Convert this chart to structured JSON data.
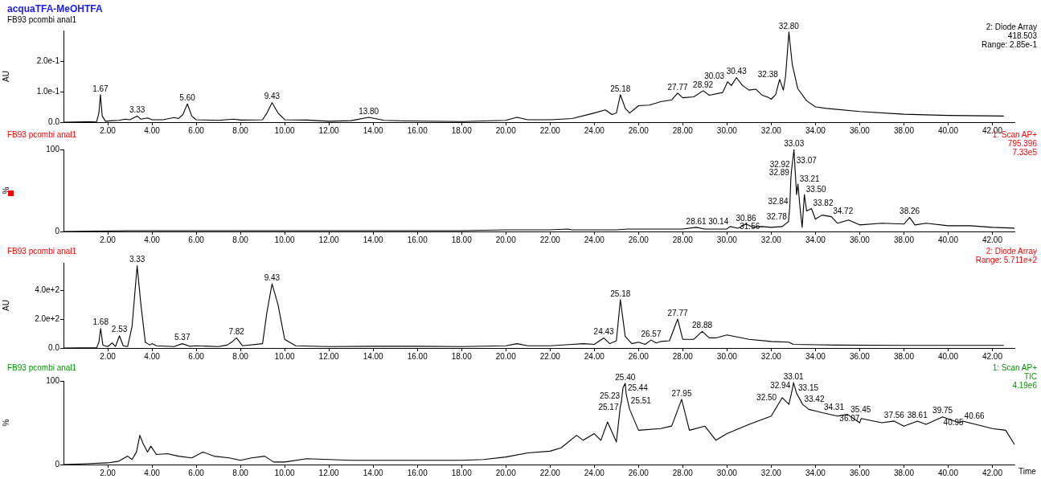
{
  "chart_data": [
    {
      "type": "line",
      "title": "acquaTFA-MeOHTFA",
      "subtitle": "FB93 pcombi anal1",
      "ylabel": "AU",
      "color": "#000000",
      "marker": "none",
      "grid": false,
      "legend": false,
      "x": [
        0,
        1.0,
        1.5,
        1.6,
        1.67,
        1.75,
        1.9,
        2.2,
        2.5,
        2.8,
        3.0,
        3.33,
        3.5,
        3.8,
        4.0,
        4.5,
        5.0,
        5.2,
        5.4,
        5.6,
        5.8,
        6.0,
        7.0,
        7.7,
        8.0,
        9.0,
        9.2,
        9.43,
        9.7,
        10.0,
        11.0,
        12.0,
        13.0,
        13.8,
        14.5,
        15.5,
        18.0,
        20.0,
        20.5,
        21.0,
        22.0,
        23.0,
        24.0,
        24.5,
        24.8,
        25.0,
        25.18,
        25.4,
        25.6,
        26.0,
        26.5,
        27.0,
        27.5,
        27.77,
        28.0,
        28.5,
        28.92,
        29.2,
        29.8,
        30.03,
        30.2,
        30.43,
        30.7,
        31.0,
        31.3,
        31.6,
        31.9,
        32.0,
        32.2,
        32.38,
        32.55,
        32.65,
        32.8,
        32.95,
        33.2,
        33.6,
        34.0,
        34.5,
        36.0,
        38.0,
        40.0,
        42.5
      ],
      "values": [
        0,
        0.001,
        0.002,
        0.03,
        0.09,
        0.02,
        0.003,
        0.005,
        0.006,
        0.01,
        0.008,
        0.02,
        0.01,
        0.014,
        0.008,
        0.008,
        0.015,
        0.012,
        0.025,
        0.06,
        0.02,
        0.008,
        0.006,
        0.01,
        0.007,
        0.008,
        0.03,
        0.064,
        0.03,
        0.008,
        0.007,
        0.003,
        0.005,
        0.016,
        0.006,
        0.004,
        0.002,
        0.006,
        0.016,
        0.008,
        0.008,
        0.012,
        0.03,
        0.04,
        0.025,
        0.03,
        0.09,
        0.045,
        0.03,
        0.054,
        0.056,
        0.067,
        0.073,
        0.095,
        0.08,
        0.083,
        0.103,
        0.088,
        0.097,
        0.132,
        0.12,
        0.146,
        0.12,
        0.105,
        0.108,
        0.088,
        0.08,
        0.075,
        0.09,
        0.14,
        0.105,
        0.15,
        0.295,
        0.19,
        0.11,
        0.07,
        0.05,
        0.045,
        0.035,
        0.026,
        0.022,
        0.02
      ],
      "xlim": [
        0,
        43
      ],
      "ylim": [
        0,
        0.3
      ],
      "xticks": [
        {
          "value": 2,
          "label": "2.00"
        },
        {
          "value": 4,
          "label": "4.00"
        },
        {
          "value": 6,
          "label": "6.00"
        },
        {
          "value": 8,
          "label": "8.00"
        },
        {
          "value": 10,
          "label": "10.00"
        },
        {
          "value": 12,
          "label": "12.00"
        },
        {
          "value": 14,
          "label": "14.00"
        },
        {
          "value": 16,
          "label": "16.00"
        },
        {
          "value": 18,
          "label": "18.00"
        },
        {
          "value": 20,
          "label": "20.00"
        },
        {
          "value": 22,
          "label": "22.00"
        },
        {
          "value": 24,
          "label": "24.00"
        },
        {
          "value": 26,
          "label": "26.00"
        },
        {
          "value": 28,
          "label": "28.00"
        },
        {
          "value": 30,
          "label": "30.00"
        },
        {
          "value": 32,
          "label": "32.00"
        },
        {
          "value": 34,
          "label": "34.00"
        },
        {
          "value": 36,
          "label": "36.00"
        },
        {
          "value": 38,
          "label": "38.00"
        },
        {
          "value": 40,
          "label": "40.00"
        },
        {
          "value": 42,
          "label": "42.00"
        }
      ],
      "yticks": [
        {
          "value": 0,
          "label": "0.0"
        },
        {
          "value": 0.1,
          "label": "1.0e-1"
        },
        {
          "value": 0.2,
          "label": "2.0e-1"
        }
      ],
      "annotations": [
        "2: Diode Array",
        "418.503",
        "Range: 2.85e-1",
        {
          "text": "1.67",
          "x": 1.67,
          "y": 0.09
        },
        {
          "text": "3.33",
          "x": 3.33,
          "y": 0.02
        },
        {
          "text": "5.60",
          "x": 5.6,
          "y": 0.06
        },
        {
          "text": "9.43",
          "x": 9.43,
          "y": 0.064
        },
        {
          "text": "13.80",
          "x": 13.8,
          "y": 0.016
        },
        {
          "text": "25.18",
          "x": 25.18,
          "y": 0.09
        },
        {
          "text": "27.77",
          "x": 27.77,
          "y": 0.095
        },
        {
          "text": "28.92",
          "x": 28.92,
          "y": 0.103
        },
        {
          "text": "30.03",
          "x": 30.03,
          "y": 0.132
        },
        {
          "text": "30.43",
          "x": 30.43,
          "y": 0.146
        },
        {
          "text": "32.38",
          "x": 32.38,
          "y": 0.14
        },
        {
          "text": "32.80",
          "x": 32.8,
          "y": 0.295
        }
      ]
    },
    {
      "type": "line",
      "subtitle": "FB93 pcombi anal1",
      "ylabel": "%",
      "color": "#000000",
      "marker": "none",
      "grid": false,
      "legend": false,
      "x": [
        0,
        3,
        5,
        8,
        10,
        13,
        15,
        18,
        20,
        22,
        22.8,
        23,
        25,
        25.5,
        27,
        28,
        28.61,
        29,
        30,
        30.14,
        30.5,
        30.86,
        31.2,
        31.56,
        32,
        32.5,
        32.78,
        32.84,
        32.89,
        32.92,
        33.03,
        33.07,
        33.15,
        33.21,
        33.3,
        33.4,
        33.5,
        33.6,
        33.82,
        34,
        34.3,
        34.72,
        35,
        35.5,
        36,
        37,
        38,
        38.26,
        38.5,
        39,
        40,
        41,
        42,
        43
      ],
      "values": [
        0,
        1,
        1,
        1,
        1,
        1,
        1,
        1,
        2,
        2,
        3,
        2,
        2,
        3,
        3,
        3,
        5,
        3,
        3,
        6,
        4,
        9,
        5,
        6,
        5,
        6,
        12,
        30,
        65,
        75,
        100,
        80,
        45,
        58,
        30,
        5,
        45,
        25,
        28,
        15,
        20,
        18,
        10,
        14,
        8,
        10,
        9,
        17,
        8,
        10,
        7,
        7,
        5,
        4
      ],
      "xlim": [
        0,
        43
      ],
      "ylim": [
        0,
        100
      ],
      "xticks": [
        {
          "value": 2,
          "label": "2.00"
        },
        {
          "value": 4,
          "label": "4.00"
        },
        {
          "value": 6,
          "label": "6.00"
        },
        {
          "value": 8,
          "label": "8.00"
        },
        {
          "value": 10,
          "label": "10.00"
        },
        {
          "value": 12,
          "label": "12.00"
        },
        {
          "value": 14,
          "label": "14.00"
        },
        {
          "value": 16,
          "label": "16.00"
        },
        {
          "value": 18,
          "label": "18.00"
        },
        {
          "value": 20,
          "label": "20.00"
        },
        {
          "value": 22,
          "label": "22.00"
        },
        {
          "value": 24,
          "label": "24.00"
        },
        {
          "value": 26,
          "label": "26.00"
        },
        {
          "value": 28,
          "label": "28.00"
        },
        {
          "value": 30,
          "label": "30.00"
        },
        {
          "value": 32,
          "label": "32.00"
        },
        {
          "value": 34,
          "label": "34.00"
        },
        {
          "value": 36,
          "label": "36.00"
        },
        {
          "value": 38,
          "label": "38.00"
        },
        {
          "value": 40,
          "label": "40.00"
        },
        {
          "value": 42,
          "label": "42.00"
        }
      ],
      "yticks": [
        {
          "value": 0,
          "label": "0"
        },
        {
          "value": 100,
          "label": "100"
        }
      ],
      "annotations": [
        "1: Scan AP+",
        "795.396",
        "7.33e5",
        {
          "text": "28.61",
          "x": 28.61,
          "y": 5
        },
        {
          "text": "30.14",
          "x": 30.14,
          "y": 6
        },
        {
          "text": "30.86",
          "x": 30.86,
          "y": 9
        },
        {
          "text": "31.56",
          "x": 31.56,
          "y": 6
        },
        {
          "text": "32.78",
          "x": 32.78,
          "y": 12
        },
        {
          "text": "32.84",
          "x": 32.84,
          "y": 30
        },
        {
          "text": "32.89",
          "x": 32.89,
          "y": 65
        },
        {
          "text": "32.92",
          "x": 32.92,
          "y": 75
        },
        {
          "text": "33.03",
          "x": 33.03,
          "y": 100
        },
        {
          "text": "33.07",
          "x": 33.07,
          "y": 80
        },
        {
          "text": "33.21",
          "x": 33.21,
          "y": 58
        },
        {
          "text": "33.50",
          "x": 33.5,
          "y": 45
        },
        {
          "text": "33.82",
          "x": 33.82,
          "y": 28
        },
        {
          "text": "34.72",
          "x": 34.72,
          "y": 18
        },
        {
          "text": "38.26",
          "x": 38.26,
          "y": 17
        }
      ]
    },
    {
      "type": "line",
      "subtitle": "FB93 pcombi anal1",
      "ylabel": "AU",
      "color": "#000000",
      "marker": "none",
      "grid": false,
      "legend": false,
      "x": [
        0,
        1.5,
        1.6,
        1.68,
        1.78,
        2.0,
        2.2,
        2.35,
        2.53,
        2.7,
        2.9,
        3.1,
        3.33,
        3.5,
        3.7,
        3.9,
        4.0,
        4.2,
        5.0,
        5.37,
        5.7,
        6.0,
        7.0,
        7.4,
        7.6,
        7.82,
        8.1,
        9.0,
        9.2,
        9.43,
        9.7,
        10.0,
        10.5,
        12,
        14,
        16,
        18,
        20,
        20.5,
        21,
        22,
        23,
        23.5,
        24,
        24.43,
        24.7,
        25.0,
        25.18,
        25.4,
        25.7,
        26,
        26.3,
        26.57,
        26.8,
        27,
        27.4,
        27.77,
        28,
        28.5,
        28.88,
        29.2,
        29.5,
        30,
        30.5,
        31,
        32,
        32.8,
        33,
        35,
        38,
        42.5
      ],
      "values": [
        0,
        2,
        40,
        135,
        20,
        10,
        35,
        10,
        85,
        15,
        10,
        150,
        570,
        300,
        40,
        20,
        30,
        15,
        10,
        30,
        12,
        15,
        10,
        20,
        40,
        70,
        15,
        30,
        250,
        445,
        300,
        60,
        15,
        10,
        12,
        12,
        10,
        15,
        30,
        15,
        15,
        25,
        30,
        25,
        70,
        30,
        50,
        335,
        80,
        30,
        40,
        25,
        55,
        35,
        45,
        50,
        200,
        60,
        60,
        115,
        70,
        70,
        90,
        75,
        60,
        45,
        40,
        25,
        20,
        18,
        18
      ],
      "xlim": [
        0,
        43
      ],
      "ylim": [
        0,
        590
      ],
      "xticks": [
        {
          "value": 2,
          "label": "2.00"
        },
        {
          "value": 4,
          "label": "4.00"
        },
        {
          "value": 6,
          "label": "6.00"
        },
        {
          "value": 8,
          "label": "8.00"
        },
        {
          "value": 10,
          "label": "10.00"
        },
        {
          "value": 12,
          "label": "12.00"
        },
        {
          "value": 14,
          "label": "14.00"
        },
        {
          "value": 16,
          "label": "16.00"
        },
        {
          "value": 18,
          "label": "18.00"
        },
        {
          "value": 20,
          "label": "20.00"
        },
        {
          "value": 22,
          "label": "22.00"
        },
        {
          "value": 24,
          "label": "24.00"
        },
        {
          "value": 26,
          "label": "26.00"
        },
        {
          "value": 28,
          "label": "28.00"
        },
        {
          "value": 30,
          "label": "30.00"
        },
        {
          "value": 32,
          "label": "32.00"
        },
        {
          "value": 34,
          "label": "34.00"
        },
        {
          "value": 36,
          "label": "36.00"
        },
        {
          "value": 38,
          "label": "38.00"
        },
        {
          "value": 40,
          "label": "40.00"
        },
        {
          "value": 42,
          "label": "42.00"
        }
      ],
      "yticks": [
        {
          "value": 0,
          "label": "0.0"
        },
        {
          "value": 200,
          "label": "2.0e+2"
        },
        {
          "value": 400,
          "label": "4.0e+2"
        }
      ],
      "annotations": [
        "2: Diode Array",
        "Range: 5.711e+2",
        {
          "text": "1.68",
          "x": 1.68,
          "y": 135
        },
        {
          "text": "2.53",
          "x": 2.53,
          "y": 85
        },
        {
          "text": "3.33",
          "x": 3.33,
          "y": 570
        },
        {
          "text": "5.37",
          "x": 5.37,
          "y": 30
        },
        {
          "text": "7.82",
          "x": 7.82,
          "y": 70
        },
        {
          "text": "9.43",
          "x": 9.43,
          "y": 445
        },
        {
          "text": "24.43",
          "x": 24.43,
          "y": 70
        },
        {
          "text": "25.18",
          "x": 25.18,
          "y": 335
        },
        {
          "text": "26.57",
          "x": 26.57,
          "y": 55
        },
        {
          "text": "27.77",
          "x": 27.77,
          "y": 200
        },
        {
          "text": "28.88",
          "x": 28.88,
          "y": 115
        }
      ]
    },
    {
      "type": "line",
      "subtitle": "FB93 pcombi anal1",
      "ylabel": "%",
      "xlabel": "Time",
      "color": "#000000",
      "marker": "none",
      "grid": false,
      "legend": false,
      "x": [
        0,
        1,
        2,
        2.5,
        2.9,
        3.1,
        3.3,
        3.45,
        3.6,
        3.8,
        3.95,
        4.2,
        4.7,
        5.2,
        5.8,
        6.3,
        6.8,
        7.5,
        8.0,
        8.5,
        9.1,
        9.5,
        10,
        11,
        12,
        13,
        14,
        16,
        18,
        19,
        20,
        21,
        22,
        22.5,
        23.2,
        23.5,
        24.0,
        24.3,
        24.6,
        25.0,
        25.17,
        25.23,
        25.3,
        25.4,
        25.44,
        25.51,
        25.6,
        26,
        27,
        27.5,
        27.95,
        28.3,
        29,
        29.5,
        30,
        31,
        32,
        32.5,
        32.8,
        32.94,
        33.01,
        33.15,
        33.3,
        33.42,
        33.7,
        34.31,
        35,
        35.45,
        36,
        36.07,
        37,
        37.56,
        38,
        38.61,
        39,
        39.75,
        40.5,
        40.66,
        40.95,
        42,
        42.6,
        43
      ],
      "values": [
        0,
        1,
        2,
        4,
        10,
        6,
        15,
        35,
        25,
        15,
        22,
        12,
        13,
        10,
        8,
        15,
        10,
        8,
        5,
        8,
        10,
        3,
        3,
        7,
        6,
        5,
        5,
        5,
        5,
        6,
        9,
        14,
        16,
        20,
        35,
        29,
        37,
        29,
        51,
        27,
        68,
        76,
        92,
        97,
        85,
        76,
        66,
        41,
        43,
        46,
        78,
        41,
        46,
        29,
        37,
        48,
        58,
        80,
        72,
        88,
        98,
        85,
        78,
        72,
        66,
        62,
        58,
        60,
        50,
        55,
        50,
        52,
        46,
        52,
        48,
        57,
        50,
        52,
        50,
        43,
        41,
        24
      ],
      "xlim": [
        0,
        43
      ],
      "ylim": [
        0,
        100
      ],
      "xticks": [
        {
          "value": 2,
          "label": "2.00"
        },
        {
          "value": 4,
          "label": "4.00"
        },
        {
          "value": 6,
          "label": "6.00"
        },
        {
          "value": 8,
          "label": "8.00"
        },
        {
          "value": 10,
          "label": "10.00"
        },
        {
          "value": 12,
          "label": "12.00"
        },
        {
          "value": 14,
          "label": "14.00"
        },
        {
          "value": 16,
          "label": "16.00"
        },
        {
          "value": 18,
          "label": "18.00"
        },
        {
          "value": 20,
          "label": "20.00"
        },
        {
          "value": 22,
          "label": "22.00"
        },
        {
          "value": 24,
          "label": "24.00"
        },
        {
          "value": 26,
          "label": "26.00"
        },
        {
          "value": 28,
          "label": "28.00"
        },
        {
          "value": 30,
          "label": "30.00"
        },
        {
          "value": 32,
          "label": "32.00"
        },
        {
          "value": 34,
          "label": "34.00"
        },
        {
          "value": 36,
          "label": "36.00"
        },
        {
          "value": 38,
          "label": "38.00"
        },
        {
          "value": 40,
          "label": "40.00"
        },
        {
          "value": 42,
          "label": "42.00"
        }
      ],
      "yticks": [
        {
          "value": 0,
          "label": "0"
        },
        {
          "value": 100,
          "label": "100"
        }
      ],
      "annotations": [
        "1: Scan AP+",
        "TIC",
        "4.19e6",
        {
          "text": "25.17",
          "x": 25.17,
          "y": 68
        },
        {
          "text": "25.23",
          "x": 25.23,
          "y": 76
        },
        {
          "text": "25.40",
          "x": 25.4,
          "y": 97
        },
        {
          "text": "25.44",
          "x": 25.44,
          "y": 85
        },
        {
          "text": "25.51",
          "x": 25.51,
          "y": 76
        },
        {
          "text": "27.95",
          "x": 27.95,
          "y": 78
        },
        {
          "text": "32.50",
          "x": 32.5,
          "y": 80
        },
        {
          "text": "32.94",
          "x": 32.94,
          "y": 88
        },
        {
          "text": "33.01",
          "x": 33.01,
          "y": 98
        },
        {
          "text": "33.15",
          "x": 33.15,
          "y": 85
        },
        {
          "text": "33.42",
          "x": 33.42,
          "y": 72
        },
        {
          "text": "34.31",
          "x": 34.31,
          "y": 62
        },
        {
          "text": "35.45",
          "x": 35.45,
          "y": 58
        },
        {
          "text": "36.07",
          "x": 36.07,
          "y": 55
        },
        {
          "text": "37.56",
          "x": 37.56,
          "y": 50
        },
        {
          "text": "38.61",
          "x": 38.61,
          "y": 52
        },
        {
          "text": "39.75",
          "x": 39.75,
          "y": 57
        },
        {
          "text": "40.66",
          "x": 40.66,
          "y": 52
        },
        {
          "text": "40.95",
          "x": 40.95,
          "y": 50
        }
      ]
    }
  ]
}
